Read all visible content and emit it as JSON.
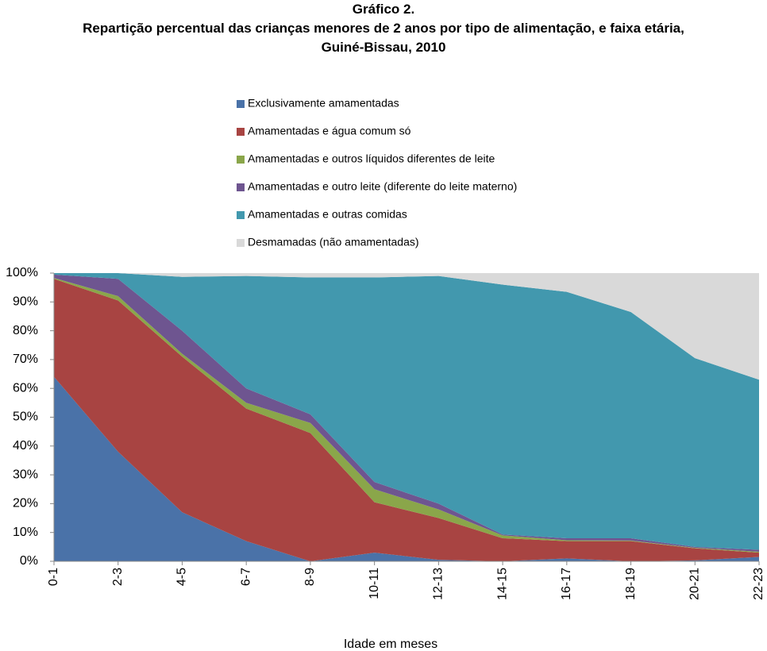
{
  "chart_data": {
    "type": "stacked-area",
    "title": "Gráfico 2.",
    "subtitle": "Repartição percentual das crianças menores de 2 anos  por tipo de alimentação, e faixa etária, Guiné-Bissau, 2010",
    "x_label": "Idade em meses",
    "categories": [
      "0-1",
      "2-3",
      "4-5",
      "6-7",
      "8-9",
      "10-11",
      "12-13",
      "14-15",
      "16-17",
      "18-19",
      "20-21",
      "22-23"
    ],
    "series": [
      {
        "name": "Exclusivamente amamentadas",
        "color": "#4a72a8",
        "values": [
          64,
          38,
          17,
          7,
          0,
          3,
          0.5,
          0,
          1,
          0,
          0.3,
          1.5
        ]
      },
      {
        "name": "Amamentadas e água comum só",
        "color": "#a84442",
        "values": [
          34,
          52.5,
          54,
          46,
          44.5,
          17.5,
          14.5,
          8,
          6,
          7,
          4.2,
          1.5
        ]
      },
      {
        "name": "Amamentadas e outros líquidos diferentes de leite",
        "color": "#8aa64a",
        "values": [
          0.3,
          1.5,
          1,
          2,
          3.5,
          4.5,
          3,
          1,
          0.3,
          0.2,
          0.2,
          0.3
        ]
      },
      {
        "name": "Amamentadas e outro leite (diferente do leite materno)",
        "color": "#6e5590",
        "values": [
          1.2,
          6,
          8,
          5,
          3,
          2.5,
          2,
          0.3,
          0.7,
          0.8,
          0.3,
          0.7
        ]
      },
      {
        "name": "Amamentadas e outras comidas",
        "color": "#4298ae",
        "values": [
          0.5,
          2,
          18.7,
          39,
          47.5,
          71,
          79,
          86.7,
          85.5,
          78.5,
          65.5,
          59
        ]
      },
      {
        "name": "Desmamadas (não amamentadas)",
        "color": "#d9d9d9",
        "values": [
          0,
          0,
          1.3,
          1,
          1.5,
          1.5,
          1,
          4,
          6.5,
          13.5,
          29.5,
          37
        ]
      }
    ],
    "ylim": [
      0,
      100
    ],
    "yticks": [
      {
        "value": 0,
        "label": "0%"
      },
      {
        "value": 10,
        "label": "10%"
      },
      {
        "value": 20,
        "label": "20%"
      },
      {
        "value": 30,
        "label": "30%"
      },
      {
        "value": 40,
        "label": "40%"
      },
      {
        "value": 50,
        "label": "50%"
      },
      {
        "value": 60,
        "label": "60%"
      },
      {
        "value": 70,
        "label": "70%"
      },
      {
        "value": 80,
        "label": "80%"
      },
      {
        "value": 90,
        "label": "90%"
      },
      {
        "value": 100,
        "label": "100%"
      }
    ],
    "legend": "top"
  }
}
